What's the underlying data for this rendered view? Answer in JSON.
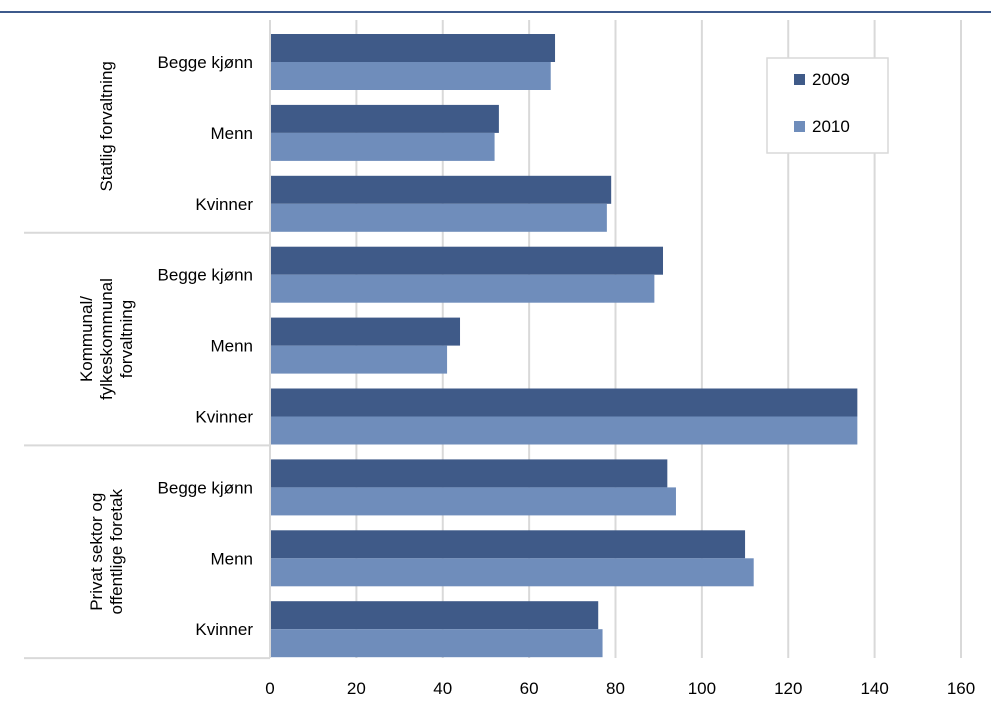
{
  "colors": {
    "top_rule": "#3d5a8c",
    "series_2009": "#3f5a88",
    "series_2010": "#6f8dbb",
    "grid": "#d9d9d9"
  },
  "chart_data": {
    "type": "bar",
    "orientation": "horizontal",
    "title": "",
    "xlabel": "",
    "ylabel": "",
    "xlim": [
      0,
      160
    ],
    "x_ticks": [
      "0",
      "20",
      "40",
      "60",
      "80",
      "100",
      "120",
      "140",
      "160"
    ],
    "grid": true,
    "legend_position": "top-right",
    "groups": [
      {
        "label": "Statlig forvaltning",
        "categories": [
          "Begge kjønn",
          "Menn",
          "Kvinner"
        ]
      },
      {
        "label": "Kommunal/ fylkeskommunal forvaltning",
        "categories": [
          "Begge kjønn",
          "Menn",
          "Kvinner"
        ]
      },
      {
        "label": "Privat sektor og offentlige foretak",
        "categories": [
          "Begge kjønn",
          "Menn",
          "Kvinner"
        ]
      }
    ],
    "series": [
      {
        "name": "2009",
        "values": [
          66,
          53,
          79,
          91,
          44,
          136,
          92,
          110,
          76
        ]
      },
      {
        "name": "2010",
        "values": [
          65,
          52,
          78,
          89,
          41,
          136,
          94,
          112,
          77
        ]
      }
    ]
  }
}
